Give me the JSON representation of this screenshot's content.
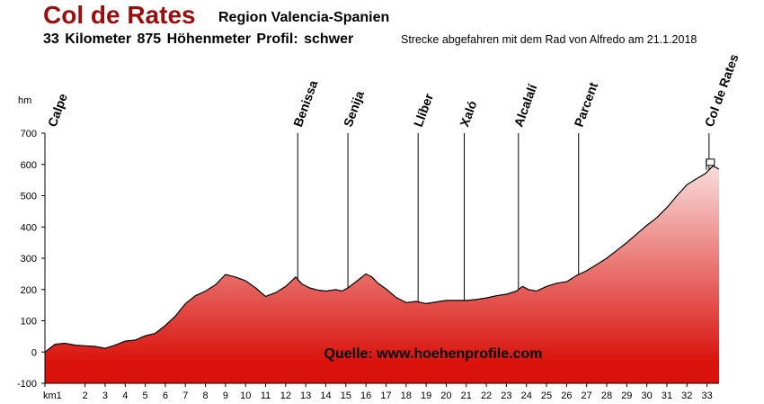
{
  "header": {
    "title": "Col de Rates",
    "region": "Region Valencia-Spanien",
    "stats": "33 Kilometer  875 Höhenmeter  Profil: schwer",
    "note": "Strecke abgefahren mit dem Rad von Alfredo am 21.1.2018"
  },
  "chart_data": {
    "type": "area",
    "ylabel": "hm",
    "xlabel": "",
    "ylim": [
      -100,
      700
    ],
    "xlim": [
      0,
      33.6
    ],
    "yticks": [
      -100,
      0,
      100,
      200,
      300,
      400,
      500,
      600,
      700
    ],
    "xticks": [
      {
        "x": 0,
        "label": "km1"
      },
      {
        "x": 2,
        "label": "2"
      },
      {
        "x": 3,
        "label": "3"
      },
      {
        "x": 4,
        "label": "4"
      },
      {
        "x": 5,
        "label": "5"
      },
      {
        "x": 6,
        "label": "6"
      },
      {
        "x": 7,
        "label": "7"
      },
      {
        "x": 8,
        "label": "8"
      },
      {
        "x": 9,
        "label": "9"
      },
      {
        "x": 10,
        "label": "10"
      },
      {
        "x": 11,
        "label": "11"
      },
      {
        "x": 12,
        "label": "12"
      },
      {
        "x": 13,
        "label": "13"
      },
      {
        "x": 14,
        "label": "14"
      },
      {
        "x": 15,
        "label": "15"
      },
      {
        "x": 16,
        "label": "16"
      },
      {
        "x": 17,
        "label": "17"
      },
      {
        "x": 18,
        "label": "18"
      },
      {
        "x": 19,
        "label": "19"
      },
      {
        "x": 20,
        "label": "20"
      },
      {
        "x": 21,
        "label": "21"
      },
      {
        "x": 22,
        "label": "22"
      },
      {
        "x": 23,
        "label": "23"
      },
      {
        "x": 24,
        "label": "24"
      },
      {
        "x": 25,
        "label": "25"
      },
      {
        "x": 26,
        "label": "26"
      },
      {
        "x": 27,
        "label": "27"
      },
      {
        "x": 28,
        "label": "28"
      },
      {
        "x": 29,
        "label": "29"
      },
      {
        "x": 30,
        "label": "30"
      },
      {
        "x": 31,
        "label": "31"
      },
      {
        "x": 32,
        "label": "32"
      },
      {
        "x": 33,
        "label": "33"
      }
    ],
    "x": [
      0,
      0.5,
      1,
      1.5,
      2,
      2.5,
      3,
      3.5,
      4,
      4.5,
      5,
      5.5,
      6,
      6.5,
      7,
      7.5,
      8,
      8.5,
      9,
      9.5,
      10,
      10.5,
      11,
      11.5,
      12,
      12.5,
      12.8,
      13.2,
      13.6,
      14,
      14.5,
      14.8,
      15.1,
      15.5,
      16,
      16.3,
      16.6,
      17,
      17.5,
      18,
      18.5,
      19,
      19.5,
      20,
      20.5,
      21,
      21.5,
      22,
      22.5,
      23,
      23.5,
      23.8,
      24.1,
      24.5,
      25,
      25.5,
      26,
      26.5,
      27,
      27.5,
      28,
      28.5,
      29,
      29.5,
      30,
      30.5,
      31,
      31.5,
      32,
      32.5,
      32.9,
      33.3,
      33.6
    ],
    "elevation": [
      0,
      25,
      28,
      22,
      20,
      18,
      12,
      22,
      35,
      38,
      52,
      60,
      85,
      115,
      155,
      180,
      195,
      215,
      248,
      240,
      228,
      205,
      178,
      190,
      210,
      240,
      218,
      205,
      198,
      195,
      200,
      195,
      205,
      225,
      250,
      240,
      220,
      202,
      175,
      158,
      162,
      155,
      160,
      165,
      165,
      165,
      168,
      173,
      180,
      185,
      195,
      210,
      200,
      195,
      210,
      220,
      225,
      245,
      260,
      280,
      300,
      325,
      350,
      378,
      405,
      430,
      462,
      500,
      535,
      555,
      570,
      595,
      585
    ],
    "places": [
      {
        "name": "Calpe",
        "x": 0
      },
      {
        "name": "Benissa",
        "x": 12.6
      },
      {
        "name": "Senija",
        "x": 15.1
      },
      {
        "name": "Llíber",
        "x": 18.6
      },
      {
        "name": "Xaló",
        "x": 20.9
      },
      {
        "name": "Alcalalí",
        "x": 23.6
      },
      {
        "name": "Parcent",
        "x": 26.6
      },
      {
        "name": "Col de Rates",
        "x": 33.1
      }
    ],
    "watermark": "Quelle: www.hoehenprofile.com",
    "colors": {
      "fill_bottom": "#d9120b",
      "fill_top": "#ffffff",
      "line": "#000000",
      "title": "#9b0d0d"
    }
  }
}
